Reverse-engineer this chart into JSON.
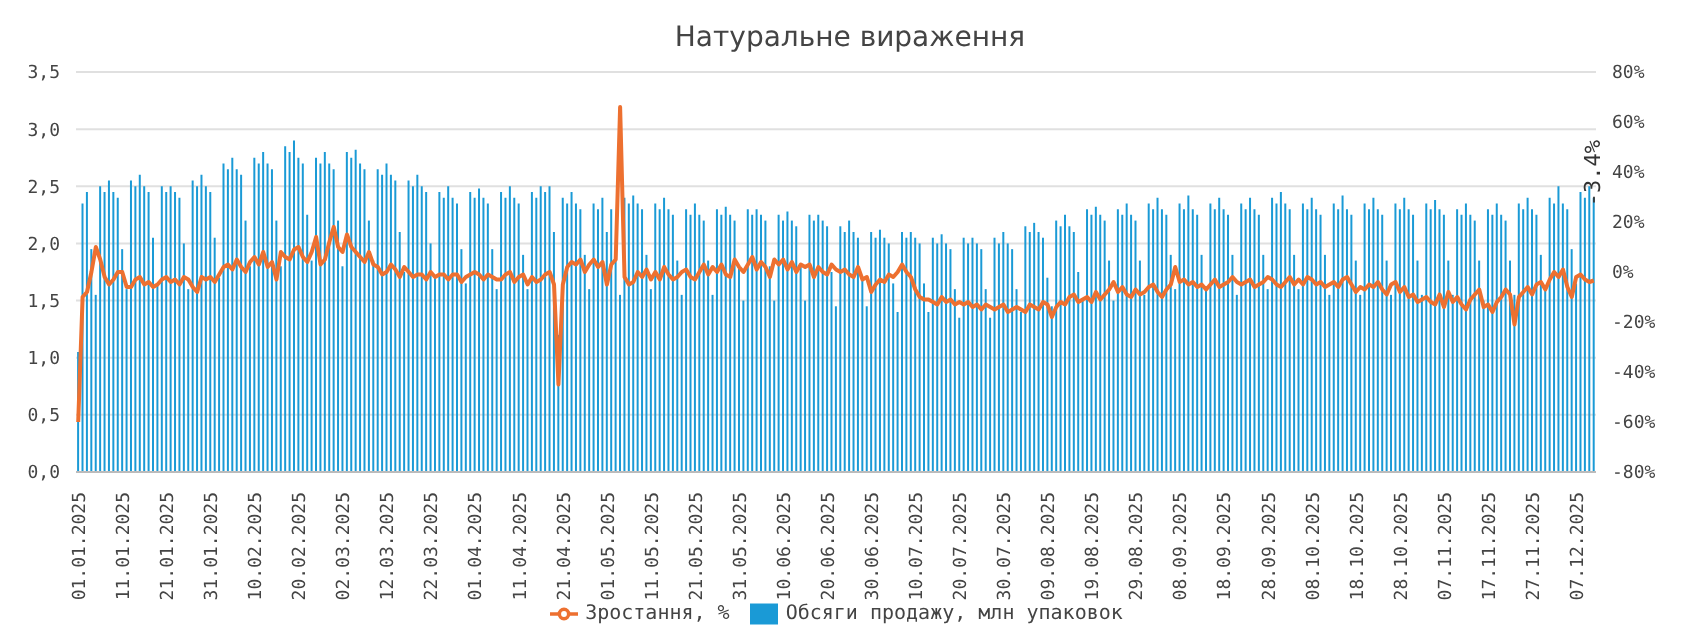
{
  "chart_data": {
    "type": "bar",
    "title": "Натуральне вираження",
    "categories": [
      "01.01.2025",
      null,
      null,
      null,
      null,
      null,
      null,
      null,
      null,
      null,
      "11.01.2025",
      null,
      null,
      null,
      null,
      null,
      null,
      null,
      null,
      null,
      "21.01.2025",
      null,
      null,
      null,
      null,
      null,
      null,
      null,
      null,
      null,
      "31.01.2025",
      null,
      null,
      null,
      null,
      null,
      null,
      null,
      null,
      null,
      "10.02.2025",
      null,
      null,
      null,
      null,
      null,
      null,
      null,
      null,
      null,
      "20.02.2025",
      null,
      null,
      null,
      null,
      null,
      null,
      null,
      null,
      null,
      "02.03.2025",
      null,
      null,
      null,
      null,
      null,
      null,
      null,
      null,
      null,
      "12.03.2025",
      null,
      null,
      null,
      null,
      null,
      null,
      null,
      null,
      null,
      "22.03.2025",
      null,
      null,
      null,
      null,
      null,
      null,
      null,
      null,
      null,
      "01.04.2025",
      null,
      null,
      null,
      null,
      null,
      null,
      null,
      null,
      null,
      "11.04.2025",
      null,
      null,
      null,
      null,
      null,
      null,
      null,
      null,
      null,
      "21.04.2025",
      null,
      null,
      null,
      null,
      null,
      null,
      null,
      null,
      null,
      "01.05.2025",
      null,
      null,
      null,
      null,
      null,
      null,
      null,
      null,
      null,
      "11.05.2025",
      null,
      null,
      null,
      null,
      null,
      null,
      null,
      null,
      null,
      "21.05.2025",
      null,
      null,
      null,
      null,
      null,
      null,
      null,
      null,
      null,
      "31.05.2025",
      null,
      null,
      null,
      null,
      null,
      null,
      null,
      null,
      null,
      "10.06.2025",
      null,
      null,
      null,
      null,
      null,
      null,
      null,
      null,
      null,
      "20.06.2025",
      null,
      null,
      null,
      null,
      null,
      null,
      null,
      null,
      null,
      "30.06.2025",
      null,
      null,
      null,
      null,
      null,
      null,
      null,
      null,
      null,
      "10.07.2025",
      null,
      null,
      null,
      null,
      null,
      null,
      null,
      null,
      null,
      "20.07.2025",
      null,
      null,
      null,
      null,
      null,
      null,
      null,
      null,
      null,
      "30.07.2025",
      null,
      null,
      null,
      null,
      null,
      null,
      null,
      null,
      null,
      "09.08.2025",
      null,
      null,
      null,
      null,
      null,
      null,
      null,
      null,
      null,
      "19.08.2025",
      null,
      null,
      null,
      null,
      null,
      null,
      null,
      null,
      null,
      "29.08.2025",
      null,
      null,
      null,
      null,
      null,
      null,
      null,
      null,
      null,
      "08.09.2025",
      null,
      null,
      null,
      null,
      null,
      null,
      null,
      null,
      null,
      "18.09.2025",
      null,
      null,
      null,
      null,
      null,
      null,
      null,
      null,
      null,
      "28.09.2025",
      null,
      null,
      null,
      null,
      null,
      null,
      null,
      null,
      null,
      "08.10.2025",
      null,
      null,
      null,
      null,
      null,
      null,
      null,
      null,
      null,
      "18.10.2025",
      null,
      null,
      null,
      null,
      null,
      null,
      null,
      null,
      null,
      "28.10.2025",
      null,
      null,
      null,
      null,
      null,
      null,
      null,
      null,
      null,
      "07.11.2025",
      null,
      null,
      null,
      null,
      null,
      null,
      null,
      null,
      null,
      "17.11.2025",
      null,
      null,
      null,
      null,
      null,
      null,
      null,
      null,
      null,
      "27.11.2025",
      null,
      null,
      null,
      null,
      null,
      null,
      null,
      null,
      null,
      "07.12.2025",
      null,
      null,
      null,
      null
    ],
    "series": [
      {
        "name": "Обсяги продажу, млн упаковок",
        "color": "#1a9ad6",
        "values": [
          1.05,
          2.35,
          2.45,
          1.95,
          1.55,
          2.5,
          2.45,
          2.55,
          2.45,
          2.4,
          1.95,
          1.6,
          2.55,
          2.5,
          2.6,
          2.5,
          2.45,
          2.05,
          1.65,
          2.5,
          2.45,
          2.5,
          2.45,
          2.4,
          2.0,
          1.6,
          2.55,
          2.5,
          2.6,
          2.5,
          2.45,
          2.05,
          1.7,
          2.7,
          2.65,
          2.75,
          2.65,
          2.6,
          2.2,
          1.8,
          2.75,
          2.7,
          2.8,
          2.7,
          2.65,
          2.2,
          1.8,
          2.85,
          2.8,
          2.9,
          2.75,
          2.7,
          2.25,
          1.85,
          2.75,
          2.7,
          2.8,
          2.7,
          2.65,
          2.2,
          1.8,
          2.8,
          2.75,
          2.82,
          2.7,
          2.65,
          2.2,
          1.85,
          2.65,
          2.6,
          2.7,
          2.6,
          2.55,
          2.1,
          1.75,
          2.55,
          2.5,
          2.6,
          2.5,
          2.45,
          2.0,
          1.7,
          2.45,
          2.4,
          2.5,
          2.4,
          2.35,
          1.95,
          1.65,
          2.45,
          2.4,
          2.48,
          2.4,
          2.35,
          1.95,
          1.6,
          2.45,
          2.4,
          2.5,
          2.4,
          2.35,
          1.9,
          1.6,
          2.45,
          2.4,
          2.5,
          2.45,
          2.5,
          2.1,
          1.2,
          2.4,
          2.35,
          2.45,
          2.35,
          2.3,
          1.9,
          1.6,
          2.35,
          2.3,
          2.4,
          2.1,
          2.3,
          1.9,
          1.55,
          2.4,
          2.35,
          2.42,
          2.35,
          2.3,
          1.9,
          1.6,
          2.35,
          2.3,
          2.4,
          2.3,
          2.25,
          1.85,
          1.55,
          2.3,
          2.25,
          2.35,
          2.25,
          2.2,
          1.85,
          1.55,
          2.3,
          2.25,
          2.32,
          2.25,
          2.2,
          1.8,
          1.5,
          2.3,
          2.25,
          2.3,
          2.25,
          2.2,
          1.8,
          1.5,
          2.25,
          2.2,
          2.28,
          2.2,
          2.15,
          1.8,
          1.5,
          2.25,
          2.2,
          2.25,
          2.2,
          2.15,
          1.75,
          1.45,
          2.15,
          2.1,
          2.2,
          2.1,
          2.05,
          1.7,
          1.45,
          2.1,
          2.05,
          2.12,
          2.05,
          2.0,
          1.65,
          1.4,
          2.1,
          2.05,
          2.1,
          2.05,
          2.0,
          1.65,
          1.4,
          2.05,
          2.0,
          2.08,
          2.0,
          1.95,
          1.6,
          1.35,
          2.05,
          2.0,
          2.05,
          2.0,
          1.95,
          1.6,
          1.35,
          2.05,
          2.0,
          2.1,
          2.0,
          1.95,
          1.6,
          1.4,
          2.15,
          2.1,
          2.18,
          2.1,
          2.05,
          1.7,
          1.45,
          2.2,
          2.15,
          2.25,
          2.15,
          2.1,
          1.75,
          1.5,
          2.3,
          2.25,
          2.32,
          2.25,
          2.2,
          1.85,
          1.5,
          2.3,
          2.25,
          2.35,
          2.25,
          2.2,
          1.85,
          1.55,
          2.35,
          2.3,
          2.4,
          2.3,
          2.25,
          1.9,
          1.6,
          2.35,
          2.3,
          2.42,
          2.3,
          2.25,
          1.9,
          1.6,
          2.35,
          2.3,
          2.4,
          2.3,
          2.25,
          1.9,
          1.55,
          2.35,
          2.3,
          2.4,
          2.3,
          2.25,
          1.9,
          1.6,
          2.4,
          2.35,
          2.45,
          2.35,
          2.3,
          1.9,
          1.6,
          2.35,
          2.3,
          2.4,
          2.3,
          2.25,
          1.9,
          1.55,
          2.35,
          2.3,
          2.42,
          2.3,
          2.25,
          1.85,
          1.55,
          2.35,
          2.3,
          2.4,
          2.3,
          2.25,
          1.85,
          1.55,
          2.35,
          2.3,
          2.4,
          2.3,
          2.25,
          1.85,
          1.55,
          2.35,
          2.3,
          2.38,
          2.3,
          2.25,
          1.85,
          1.55,
          2.3,
          2.25,
          2.35,
          2.25,
          2.2,
          1.85,
          1.5,
          2.3,
          2.25,
          2.35,
          2.25,
          2.2,
          1.85,
          1.55,
          2.35,
          2.3,
          2.4,
          2.3,
          2.25,
          1.9,
          1.6,
          2.4,
          2.35,
          2.5,
          2.35,
          2.3,
          1.95,
          1.65,
          2.45,
          2.4,
          2.5,
          2.4
        ]
      },
      {
        "name": "Зростання, %",
        "type": "line",
        "axis": "y2",
        "color": "#ed7030",
        "values": [
          -60,
          -10,
          -8,
          0,
          10,
          5,
          -2,
          -5,
          -3,
          0,
          0,
          -6,
          -6,
          -3,
          -2,
          -5,
          -4,
          -6,
          -5,
          -3,
          -2,
          -4,
          -3,
          -5,
          -2,
          -3,
          -6,
          -8,
          -2,
          -3,
          -2,
          -4,
          -1,
          2,
          3,
          1,
          5,
          2,
          0,
          4,
          6,
          3,
          8,
          2,
          4,
          -3,
          8,
          6,
          5,
          9,
          10,
          6,
          4,
          8,
          14,
          3,
          5,
          12,
          18,
          10,
          8,
          15,
          10,
          8,
          6,
          4,
          8,
          3,
          2,
          -1,
          0,
          3,
          1,
          -2,
          2,
          0,
          -2,
          -1,
          -1,
          -3,
          0,
          -2,
          -1,
          -1,
          -3,
          -1,
          -1,
          -4,
          -2,
          -1,
          0,
          -1,
          -3,
          -1,
          -2,
          -3,
          -3,
          -1,
          0,
          -4,
          -2,
          -1,
          -5,
          -2,
          -4,
          -3,
          -1,
          0,
          -5,
          -45,
          -5,
          2,
          4,
          3,
          5,
          0,
          3,
          5,
          2,
          4,
          -5,
          3,
          5,
          66,
          -2,
          -5,
          -4,
          0,
          -2,
          1,
          -3,
          0,
          -3,
          2,
          -1,
          -3,
          -2,
          0,
          1,
          -2,
          -3,
          0,
          3,
          -1,
          2,
          0,
          3,
          -1,
          -2,
          5,
          2,
          0,
          3,
          6,
          1,
          4,
          2,
          -2,
          5,
          3,
          5,
          1,
          4,
          0,
          3,
          2,
          3,
          -2,
          2,
          0,
          -1,
          3,
          1,
          0,
          1,
          -1,
          -2,
          2,
          -3,
          -2,
          -8,
          -5,
          -3,
          -4,
          -1,
          -2,
          0,
          3,
          0,
          -2,
          -7,
          -10,
          -11,
          -11,
          -12,
          -13,
          -10,
          -12,
          -11,
          -13,
          -12,
          -13,
          -12,
          -14,
          -13,
          -15,
          -13,
          -14,
          -15,
          -14,
          -13,
          -16,
          -15,
          -14,
          -15,
          -16,
          -13,
          -14,
          -15,
          -12,
          -13,
          -18,
          -14,
          -12,
          -13,
          -10,
          -9,
          -12,
          -11,
          -10,
          -12,
          -8,
          -11,
          -9,
          -7,
          -4,
          -8,
          -6,
          -9,
          -10,
          -7,
          -9,
          -8,
          -6,
          -5,
          -8,
          -10,
          -7,
          -5,
          2,
          -4,
          -3,
          -5,
          -4,
          -6,
          -5,
          -7,
          -5,
          -3,
          -6,
          -5,
          -4,
          -2,
          -4,
          -5,
          -4,
          -3,
          -6,
          -5,
          -4,
          -2,
          -3,
          -5,
          -6,
          -4,
          -2,
          -5,
          -3,
          -5,
          -2,
          -3,
          -5,
          -4,
          -6,
          -5,
          -4,
          -6,
          -3,
          -2,
          -5,
          -8,
          -6,
          -7,
          -5,
          -6,
          -4,
          -7,
          -9,
          -5,
          -4,
          -8,
          -6,
          -10,
          -9,
          -12,
          -11,
          -10,
          -12,
          -13,
          -9,
          -14,
          -8,
          -12,
          -10,
          -13,
          -15,
          -11,
          -9,
          -7,
          -14,
          -13,
          -16,
          -12,
          -10,
          -7,
          -9,
          -21,
          -10,
          -8,
          -6,
          -9,
          -5,
          -4,
          -7,
          -3,
          0,
          -2,
          1,
          -6,
          -10,
          -2,
          -1,
          -3,
          -4,
          -3.4
        ]
      }
    ],
    "ylim": [
      0,
      3.5
    ],
    "yticks": [
      {
        "value": 0,
        "label": "0,0"
      },
      {
        "value": 0.5,
        "label": "0,5"
      },
      {
        "value": 1,
        "label": "1,0"
      },
      {
        "value": 1.5,
        "label": "1,5"
      },
      {
        "value": 2,
        "label": "2,0"
      },
      {
        "value": 2.5,
        "label": "2,5"
      },
      {
        "value": 3,
        "label": "3,0"
      },
      {
        "value": 3.5,
        "label": "3,5"
      }
    ],
    "y2lim": [
      -80,
      80
    ],
    "y2ticks": [
      {
        "value": -80,
        "label": "-80%"
      },
      {
        "value": -60,
        "label": "-60%"
      },
      {
        "value": -40,
        "label": "-40%"
      },
      {
        "value": -20,
        "label": "-20%"
      },
      {
        "value": 0,
        "label": "0%"
      },
      {
        "value": 20,
        "label": "20%"
      },
      {
        "value": 40,
        "label": "40%"
      },
      {
        "value": 60,
        "label": "60%"
      },
      {
        "value": 80,
        "label": "80%"
      }
    ],
    "annotations": [
      "-3.4%"
    ],
    "grid": "y",
    "legend": "bottom"
  }
}
